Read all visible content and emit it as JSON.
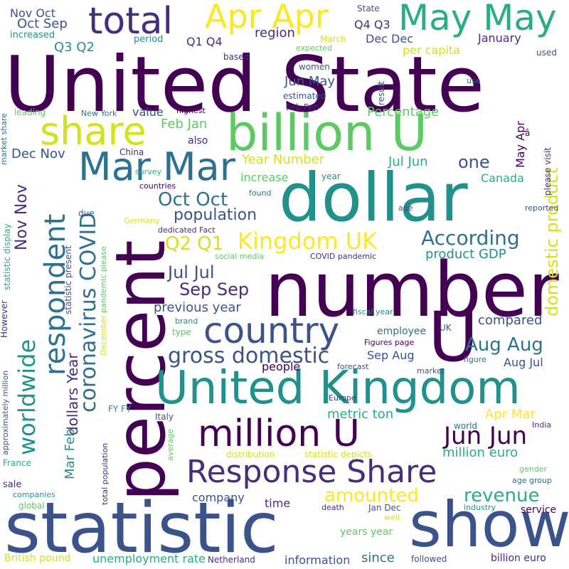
{
  "palette": {
    "dark_purple": "#440154",
    "indigo": "#472d7b",
    "deep_blue": "#3b528b",
    "steel_blue": "#2c728e",
    "teal": "#21918c",
    "green_teal": "#28ae80",
    "green": "#5ec962",
    "lime": "#addc30",
    "yellow": "#fde725"
  },
  "words": [
    {
      "text": "United State",
      "color": "#440154"
    },
    {
      "text": "percent",
      "color": "#440154"
    },
    {
      "text": "number",
      "color": "#440154"
    },
    {
      "text": "statistic",
      "color": "#3b528b"
    },
    {
      "text": "show",
      "color": "#3b528b"
    },
    {
      "text": "dollar",
      "color": "#21918c"
    },
    {
      "text": "billion U",
      "color": "#5ec962"
    },
    {
      "text": "United Kingdom",
      "color": "#21918c"
    },
    {
      "text": "U",
      "color": "#440154"
    },
    {
      "text": "May May",
      "color": "#28ae80"
    },
    {
      "text": "Apr Apr",
      "color": "#fde725"
    },
    {
      "text": "share",
      "color": "#d2e21b"
    },
    {
      "text": "Mar Mar",
      "color": "#2c728e"
    },
    {
      "text": "total",
      "color": "#472d7b"
    },
    {
      "text": "million U",
      "color": "#440154"
    },
    {
      "text": "country",
      "color": "#3b528b"
    },
    {
      "text": "Response Share",
      "color": "#472d7b"
    },
    {
      "text": "respondent",
      "color": "#2c728e"
    },
    {
      "text": "Kingdom UK",
      "color": "#fde725"
    },
    {
      "text": "coronavirus COVID",
      "color": "#2c728e"
    },
    {
      "text": "worldwide",
      "color": "#21918c"
    },
    {
      "text": "domestic product",
      "color": "#d2e21b"
    },
    {
      "text": "gross domestic",
      "color": "#3b528b"
    },
    {
      "text": "Jun Jun",
      "color": "#440154"
    },
    {
      "text": "According",
      "color": "#2c728e"
    },
    {
      "text": "Oct Oct",
      "color": "#2c728e"
    },
    {
      "text": "population",
      "color": "#3b528b"
    },
    {
      "text": "Q2 Q1",
      "color": "#d2e21b"
    },
    {
      "text": "Jul Jul",
      "color": "#3b528b"
    },
    {
      "text": "Sep Sep",
      "color": "#472d7b"
    },
    {
      "text": "amounted",
      "color": "#fde725"
    },
    {
      "text": "revenue",
      "color": "#28ae80"
    },
    {
      "text": "Aug Aug",
      "color": "#2c728e"
    },
    {
      "text": "Nov Nov",
      "color": "#472d7b"
    },
    {
      "text": "previous year",
      "color": "#3b528b"
    },
    {
      "text": "Year Number",
      "color": "#d2e21b"
    },
    {
      "text": "one",
      "color": "#3b528b"
    },
    {
      "text": "increase",
      "color": "#5ec962"
    },
    {
      "text": "Jul Jun",
      "color": "#28ae80"
    },
    {
      "text": "dollars Year",
      "color": "#472d7b"
    },
    {
      "text": "Mar Feb",
      "color": "#21918c"
    },
    {
      "text": "Apr Mar",
      "color": "#fde725"
    },
    {
      "text": "metric ton",
      "color": "#28ae80"
    },
    {
      "text": "million euro",
      "color": "#28ae80"
    },
    {
      "text": "compared",
      "color": "#3b528b"
    },
    {
      "text": "Feb Jan",
      "color": "#5ec962"
    },
    {
      "text": "Dec Nov",
      "color": "#3b528b"
    },
    {
      "text": "Percentage",
      "color": "#5ec962"
    },
    {
      "text": "Q3 Q2",
      "color": "#21918c"
    },
    {
      "text": "region",
      "color": "#472d7b"
    },
    {
      "text": "per capita",
      "color": "#d2e21b"
    },
    {
      "text": "Oct Sep",
      "color": "#3b528b"
    },
    {
      "text": "Dec Dec",
      "color": "#3b528b"
    },
    {
      "text": "Q1 Q4",
      "color": "#472d7b"
    },
    {
      "text": "Q4 Q3",
      "color": "#472d7b"
    },
    {
      "text": "Jun May",
      "color": "#3b528b"
    },
    {
      "text": "product GDP",
      "color": "#21918c"
    },
    {
      "text": "Canada",
      "color": "#28ae80"
    },
    {
      "text": "May Apr",
      "color": "#440154"
    },
    {
      "text": "Sep Aug",
      "color": "#3b528b"
    },
    {
      "text": "Aug Jul",
      "color": "#3b528b"
    },
    {
      "text": "people",
      "color": "#440154"
    },
    {
      "text": "employee",
      "color": "#2c728e"
    },
    {
      "text": "time",
      "color": "#472d7b"
    },
    {
      "text": "company",
      "color": "#3b528b"
    },
    {
      "text": "service",
      "color": "#440154"
    },
    {
      "text": "since",
      "color": "#2c728e"
    },
    {
      "text": "years year",
      "color": "#5ec962"
    },
    {
      "text": "information",
      "color": "#3b528b"
    },
    {
      "text": "unemployment rate",
      "color": "#28ae80"
    },
    {
      "text": "British pound",
      "color": "#d2e21b"
    },
    {
      "text": "billion euro",
      "color": "#472d7b"
    },
    {
      "text": "Nov Oct",
      "color": "#3b528b"
    },
    {
      "text": "increased",
      "color": "#21918c"
    },
    {
      "text": "period",
      "color": "#21918c"
    },
    {
      "text": "March",
      "color": "#d2e21b"
    },
    {
      "text": "expected",
      "color": "#5ec962"
    },
    {
      "text": "State",
      "color": "#3b528b"
    },
    {
      "text": "January",
      "color": "#472d7b"
    },
    {
      "text": "used",
      "color": "#3b528b"
    },
    {
      "text": "based",
      "color": "#472d7b"
    },
    {
      "text": "women",
      "color": "#3b528b"
    },
    {
      "text": "use",
      "color": "#2c728e"
    },
    {
      "text": "estimated",
      "color": "#3b528b"
    },
    {
      "text": "Feb Feb",
      "color": "#472d7b"
    },
    {
      "text": "result",
      "color": "#3b528b"
    },
    {
      "text": "leading",
      "color": "#5ec962"
    },
    {
      "text": "New York",
      "color": "#2c728e"
    },
    {
      "text": "value",
      "color": "#3b528b"
    },
    {
      "text": "highest",
      "color": "#440154"
    },
    {
      "text": "also",
      "color": "#472d7b"
    },
    {
      "text": "China",
      "color": "#472d7b"
    },
    {
      "text": "survey",
      "color": "#28ae80"
    },
    {
      "text": "countries",
      "color": "#440154"
    },
    {
      "text": "year",
      "color": "#21918c"
    },
    {
      "text": "found",
      "color": "#2c728e"
    },
    {
      "text": "age",
      "color": "#3b528b"
    },
    {
      "text": "reported",
      "color": "#3b528b"
    },
    {
      "text": "please visit",
      "color": "#472d7b"
    },
    {
      "text": "â",
      "color": "#440154"
    },
    {
      "text": "Germany",
      "color": "#d2e21b"
    },
    {
      "text": "dedicated Fact",
      "color": "#472d7b"
    },
    {
      "text": "due",
      "color": "#3b528b"
    },
    {
      "text": "social media",
      "color": "#5ec962"
    },
    {
      "text": "COVID pandemic",
      "color": "#472d7b"
    },
    {
      "text": "fiscal year",
      "color": "#21918c"
    },
    {
      "text": "UK",
      "color": "#3b528b"
    },
    {
      "text": "Figures page",
      "color": "#440154"
    },
    {
      "text": "forecast",
      "color": "#3b528b"
    },
    {
      "text": "figure",
      "color": "#2c728e"
    },
    {
      "text": "market",
      "color": "#3b528b"
    },
    {
      "text": "brand",
      "color": "#21918c"
    },
    {
      "text": "type",
      "color": "#5ec962"
    },
    {
      "text": "FY FY",
      "color": "#21918c"
    },
    {
      "text": "Europe",
      "color": "#472d7b"
    },
    {
      "text": "Italy",
      "color": "#3b528b"
    },
    {
      "text": "world",
      "color": "#2c728e"
    },
    {
      "text": "India",
      "color": "#472d7b"
    },
    {
      "text": "distribution",
      "color": "#d2e21b"
    },
    {
      "text": "statistic depicts",
      "color": "#d2e21b"
    },
    {
      "text": "gender",
      "color": "#5ec962"
    },
    {
      "text": "age group",
      "color": "#2c728e"
    },
    {
      "text": "industry",
      "color": "#21918c"
    },
    {
      "text": "death",
      "color": "#472d7b"
    },
    {
      "text": "Jan Dec",
      "color": "#3b528b"
    },
    {
      "text": "well",
      "color": "#d2e21b"
    },
    {
      "text": "followed",
      "color": "#3b528b"
    },
    {
      "text": "Netherland",
      "color": "#472d7b"
    },
    {
      "text": "sale",
      "color": "#472d7b"
    },
    {
      "text": "companies",
      "color": "#21918c"
    },
    {
      "text": "global",
      "color": "#5ec962"
    },
    {
      "text": "France",
      "color": "#28ae80"
    },
    {
      "text": "average",
      "color": "#5ec962"
    },
    {
      "text": "total population",
      "color": "#472d7b"
    },
    {
      "text": "December",
      "color": "#d2e21b"
    },
    {
      "text": "pandemic please",
      "color": "#5ec962"
    },
    {
      "text": "statistic present",
      "color": "#3b528b"
    },
    {
      "text": "market share",
      "color": "#2c728e"
    },
    {
      "text": "statistic display",
      "color": "#28ae80"
    },
    {
      "text": "However",
      "color": "#472d7b"
    },
    {
      "text": "approximately million",
      "color": "#3b528b"
    }
  ]
}
